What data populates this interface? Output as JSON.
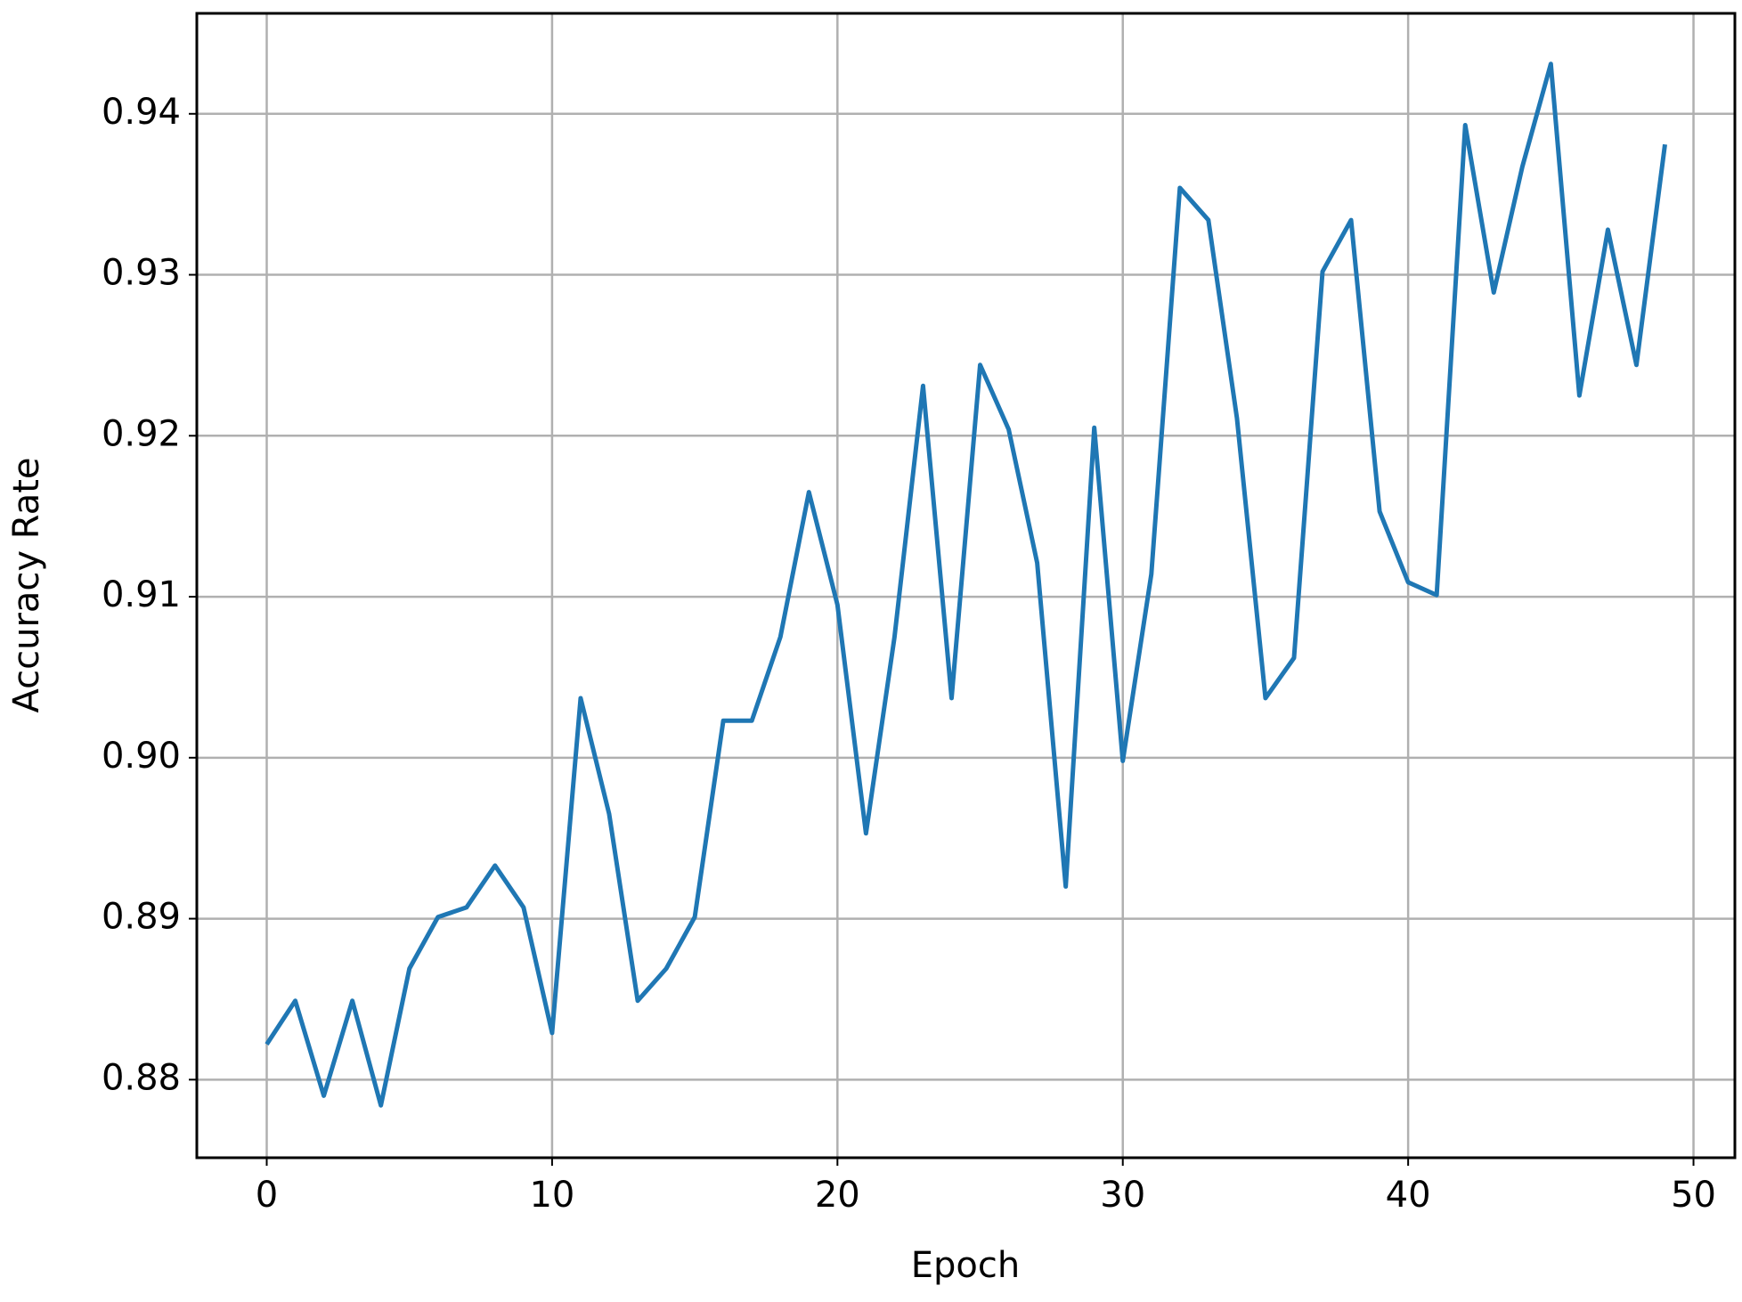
{
  "chart_data": {
    "type": "line",
    "xlabel": "Epoch",
    "ylabel": "Accuracy Rate",
    "x": [
      0,
      1,
      2,
      3,
      4,
      5,
      6,
      7,
      8,
      9,
      10,
      11,
      12,
      13,
      14,
      15,
      16,
      17,
      18,
      19,
      20,
      21,
      22,
      23,
      24,
      25,
      26,
      27,
      28,
      29,
      30,
      31,
      32,
      33,
      34,
      35,
      36,
      37,
      38,
      39,
      40,
      41,
      42,
      43,
      44,
      45,
      46,
      47,
      48,
      49
    ],
    "series": [
      {
        "color": "#1f77b4",
        "values": [
          0.8822,
          0.8849,
          0.879,
          0.8849,
          0.8784,
          0.8869,
          0.8901,
          0.8907,
          0.8933,
          0.8907,
          0.8829,
          0.9037,
          0.8965,
          0.8849,
          0.8869,
          0.8901,
          0.9023,
          0.9023,
          0.9075,
          0.9165,
          0.9095,
          0.8953,
          0.9075,
          0.9231,
          0.9037,
          0.9244,
          0.9204,
          0.9121,
          0.892,
          0.9205,
          0.8998,
          0.9114,
          0.9354,
          0.9334,
          0.9211,
          0.9037,
          0.9062,
          0.9302,
          0.9334,
          0.9153,
          0.9109,
          0.9101,
          0.9393,
          0.9289,
          0.9367,
          0.9431,
          0.9225,
          0.9328,
          0.9244,
          0.9381
        ]
      }
    ],
    "xlim": [
      -2.45,
      51.45
    ],
    "xticks": [
      0,
      10,
      20,
      30,
      40,
      50
    ],
    "ylim": [
      0.87515,
      0.94624
    ],
    "yticks": [
      0.88,
      0.89,
      {
        "value": 0.9,
        "label": "0.90"
      },
      0.91,
      0.92,
      0.93,
      0.94
    ],
    "grid": true
  }
}
